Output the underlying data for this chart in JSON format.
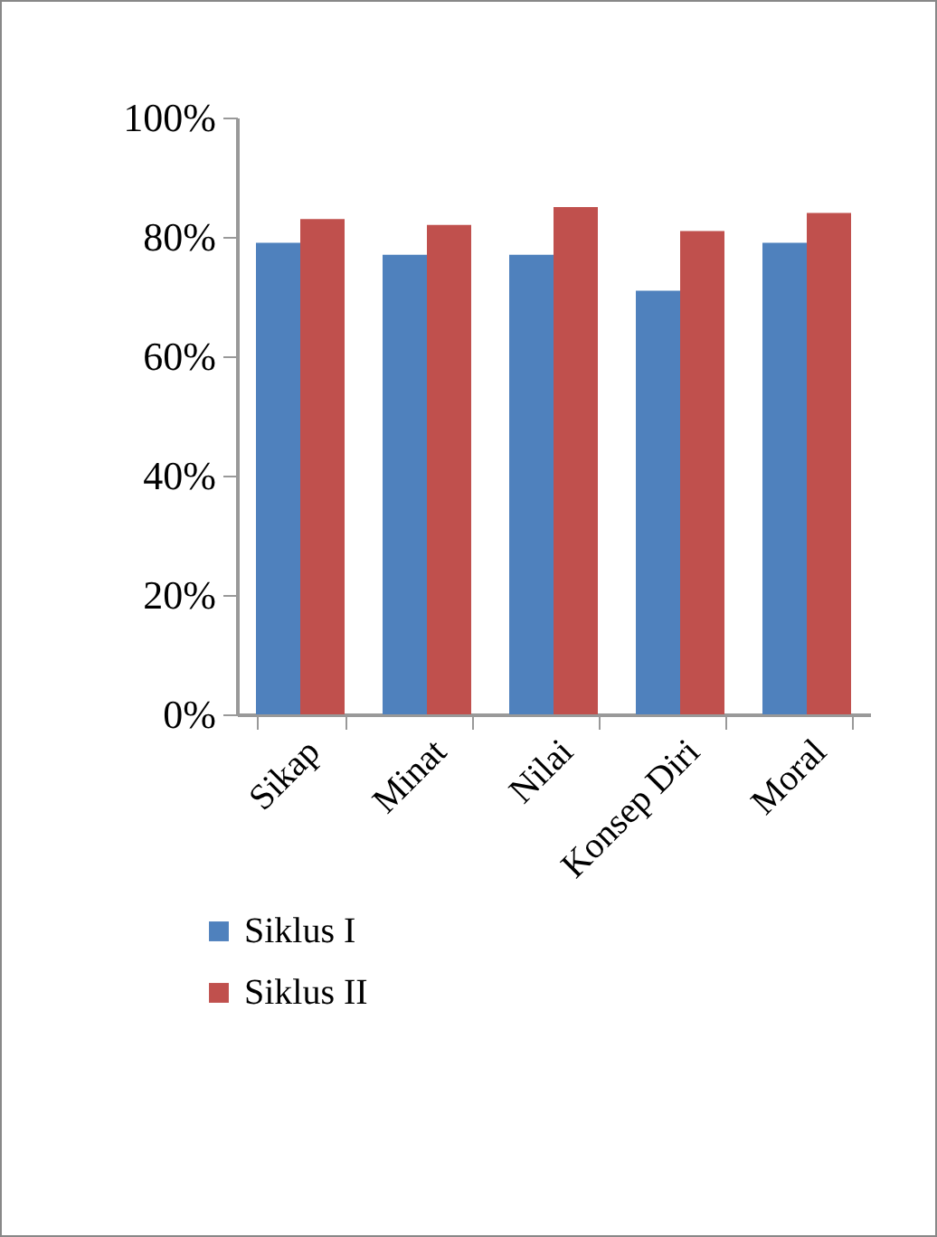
{
  "chart_data": {
    "type": "bar",
    "categories": [
      "Sikap",
      "Minat",
      "Nilai",
      "Konsep Diri",
      "Moral"
    ],
    "series": [
      {
        "name": "Siklus I",
        "color": "#4f81bd",
        "values": [
          79,
          77,
          77,
          71,
          79
        ]
      },
      {
        "name": "Siklus II",
        "color": "#c0504d",
        "values": [
          83,
          82,
          85,
          81,
          84
        ]
      }
    ],
    "ylim": [
      0,
      100
    ],
    "yticks": [
      {
        "value": 0,
        "label": "0%"
      },
      {
        "value": 20,
        "label": "20%"
      },
      {
        "value": 40,
        "label": "40%"
      },
      {
        "value": 60,
        "label": "60%"
      },
      {
        "value": 80,
        "label": "80%"
      },
      {
        "value": 100,
        "label": "100%"
      }
    ],
    "grid": false,
    "legend": "bottom"
  }
}
